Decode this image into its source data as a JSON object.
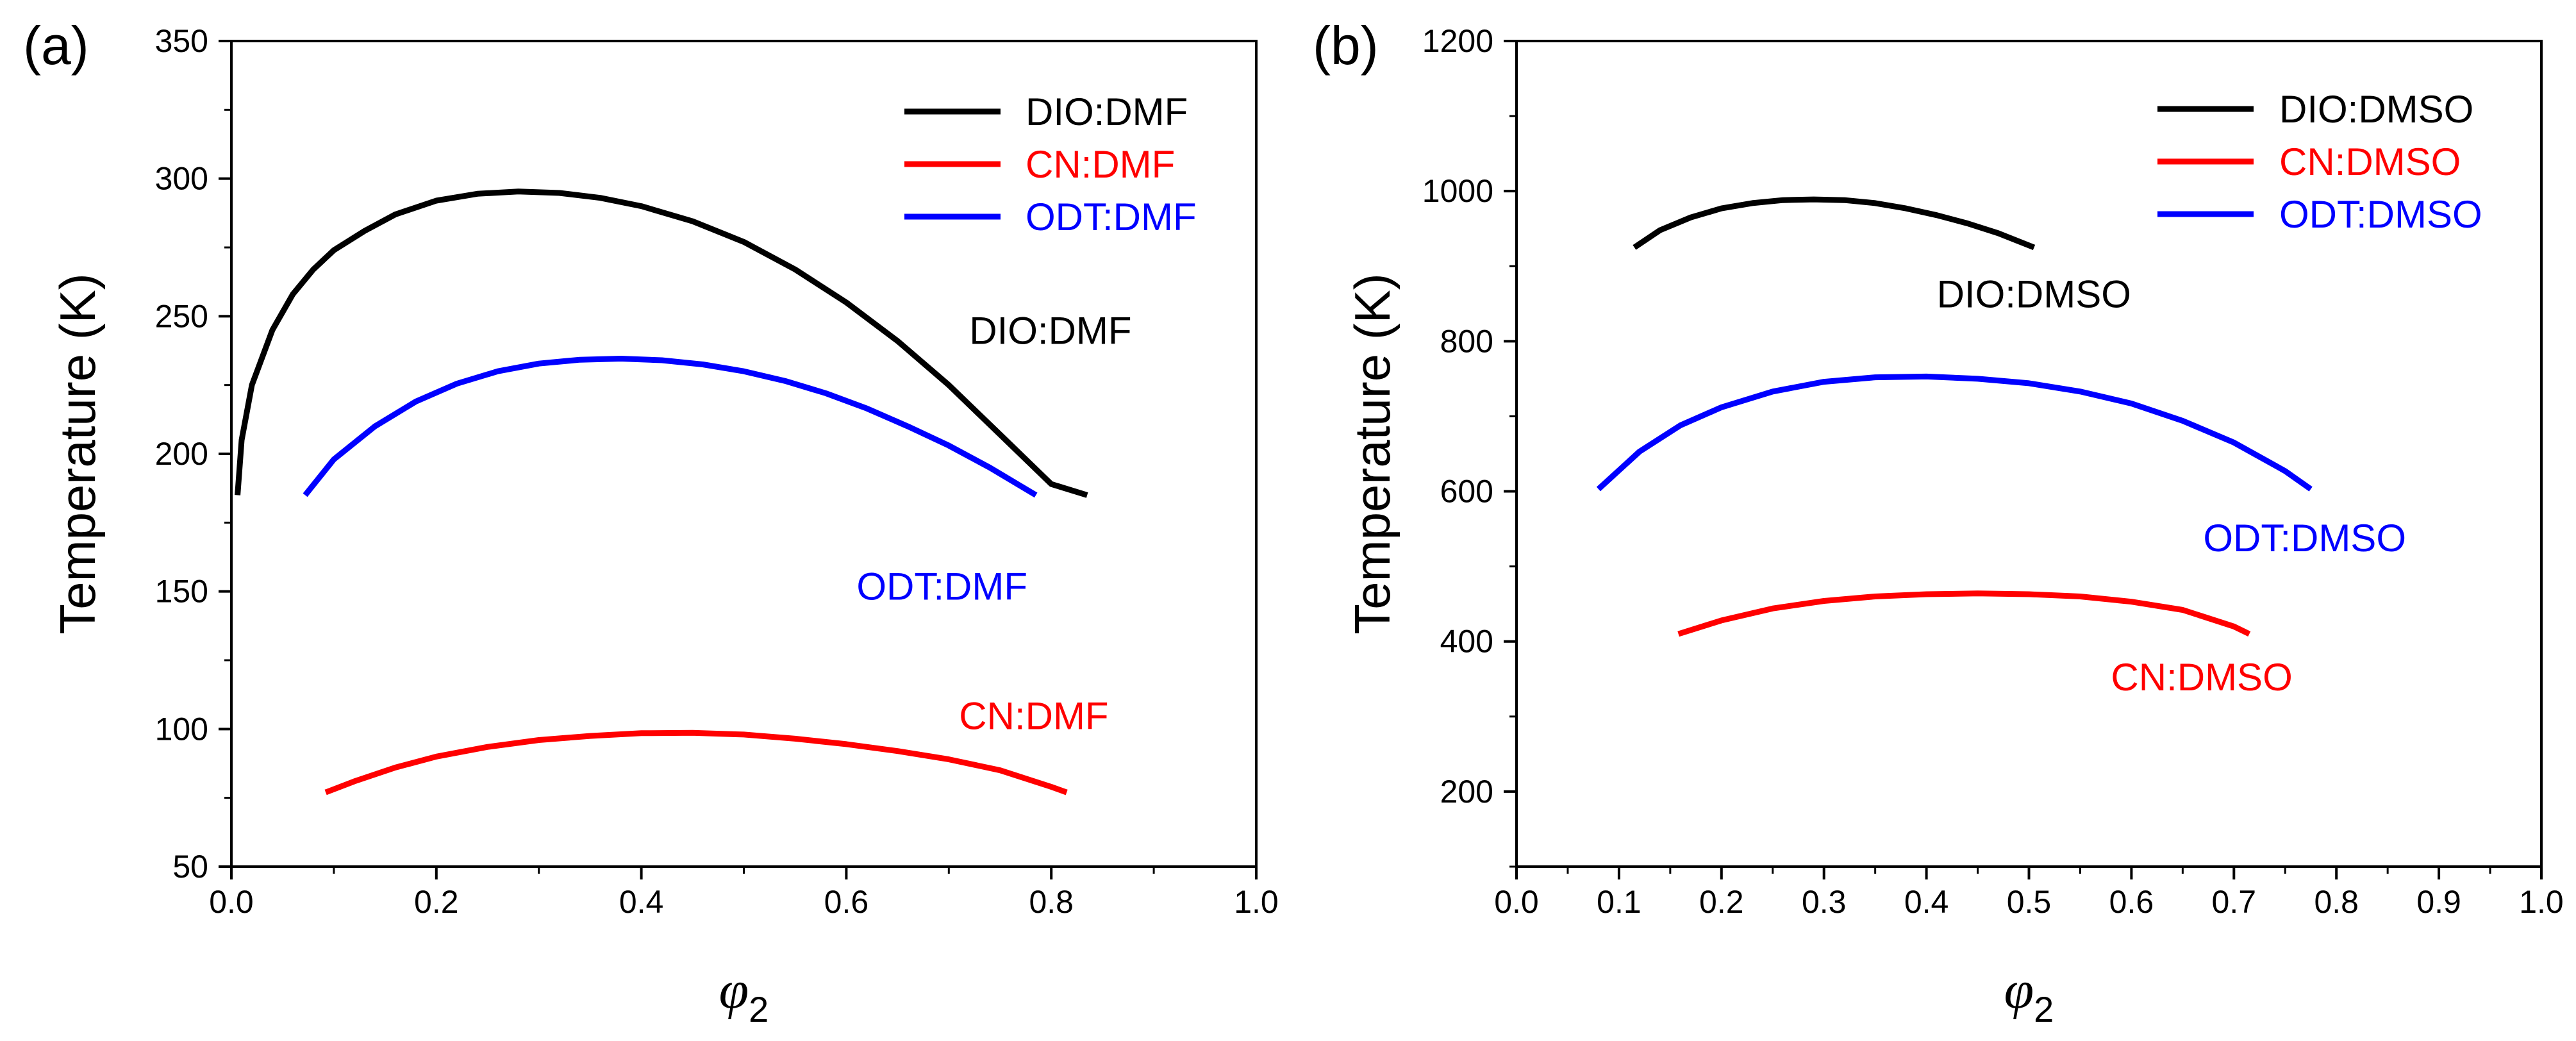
{
  "chart_data": [
    {
      "type": "line",
      "panel_label": "(a)",
      "xlabel": "φ",
      "xlabel_subscript": "2",
      "ylabel": "Temperature (K)",
      "xlim": [
        0.0,
        1.0
      ],
      "ylim": [
        50,
        350
      ],
      "x_major_ticks": [
        0.0,
        0.2,
        0.4,
        0.6,
        0.8,
        1.0
      ],
      "x_tick_labels": [
        "0.0",
        "0.2",
        "0.4",
        "0.6",
        "0.8",
        "1.0"
      ],
      "x_minor_step": 0.1,
      "y_major_ticks": [
        50,
        100,
        150,
        200,
        250,
        300,
        350
      ],
      "y_tick_labels": [
        "50",
        "100",
        "150",
        "200",
        "250",
        "300",
        "350"
      ],
      "y_minor_step": 25,
      "grid": false,
      "legend_position": "top-right",
      "series": [
        {
          "name": "DIO:DMF",
          "color": "#000000",
          "x": [
            0.006,
            0.01,
            0.02,
            0.04,
            0.06,
            0.08,
            0.1,
            0.13,
            0.16,
            0.2,
            0.24,
            0.28,
            0.32,
            0.36,
            0.4,
            0.45,
            0.5,
            0.55,
            0.6,
            0.65,
            0.7,
            0.75,
            0.8,
            0.835
          ],
          "values": [
            185,
            205,
            225,
            245,
            258,
            267,
            274,
            281,
            287,
            292,
            294.5,
            295.3,
            294.8,
            293,
            290,
            284.5,
            277,
            267,
            255,
            241,
            225,
            207,
            189,
            185
          ]
        },
        {
          "name": "CN:DMF",
          "color": "#ff0000",
          "x": [
            0.092,
            0.12,
            0.16,
            0.2,
            0.25,
            0.3,
            0.35,
            0.4,
            0.45,
            0.5,
            0.55,
            0.6,
            0.65,
            0.7,
            0.75,
            0.8,
            0.815
          ],
          "values": [
            77,
            81,
            86,
            90,
            93.5,
            96,
            97.5,
            98.5,
            98.6,
            98,
            96.5,
            94.5,
            92,
            89,
            85,
            79,
            77
          ]
        },
        {
          "name": "ODT:DMF",
          "color": "#0000ff",
          "x": [
            0.072,
            0.1,
            0.14,
            0.18,
            0.22,
            0.26,
            0.3,
            0.34,
            0.38,
            0.42,
            0.46,
            0.5,
            0.54,
            0.58,
            0.62,
            0.66,
            0.7,
            0.74,
            0.785
          ],
          "values": [
            185,
            198,
            210,
            219,
            225.5,
            230,
            232.8,
            234.2,
            234.6,
            234,
            232.5,
            230,
            226.5,
            222,
            216.5,
            210,
            203,
            195,
            185
          ]
        }
      ],
      "annotations": [
        {
          "text": "DIO:DMF",
          "color": "#000000",
          "x": 0.72,
          "y": 240
        },
        {
          "text": "ODT:DMF",
          "color": "#0000ff",
          "x": 0.61,
          "y": 147
        },
        {
          "text": "CN:DMF",
          "color": "#ff0000",
          "x": 0.71,
          "y": 100
        }
      ]
    },
    {
      "type": "line",
      "panel_label": "(b)",
      "xlabel": "φ",
      "xlabel_subscript": "2",
      "ylabel": "Temperature (K)",
      "xlim": [
        0.0,
        1.0
      ],
      "ylim": [
        100,
        1200
      ],
      "x_major_ticks": [
        0.0,
        0.1,
        0.2,
        0.3,
        0.4,
        0.5,
        0.6,
        0.7,
        0.8,
        0.9,
        1.0
      ],
      "x_tick_labels": [
        "0.0",
        "0.1",
        "0.2",
        "0.3",
        "0.4",
        "0.5",
        "0.6",
        "0.7",
        "0.8",
        "0.9",
        "1.0"
      ],
      "x_minor_step": 0.05,
      "y_major_ticks": [
        200,
        400,
        600,
        800,
        1000,
        1200
      ],
      "y_tick_labels": [
        "200",
        "400",
        "600",
        "800",
        "1000",
        "1200"
      ],
      "y_minor_step": 100,
      "grid": false,
      "legend_position": "top-right",
      "series": [
        {
          "name": "DIO:DMSO",
          "color": "#000000",
          "x": [
            0.115,
            0.14,
            0.17,
            0.2,
            0.23,
            0.26,
            0.29,
            0.32,
            0.35,
            0.38,
            0.41,
            0.44,
            0.47,
            0.505
          ],
          "values": [
            925,
            948,
            965,
            977,
            984,
            988,
            989,
            988,
            984,
            977,
            968,
            957,
            944,
            925
          ]
        },
        {
          "name": "CN:DMSO",
          "color": "#ff0000",
          "x": [
            0.158,
            0.2,
            0.25,
            0.3,
            0.35,
            0.4,
            0.45,
            0.5,
            0.55,
            0.6,
            0.65,
            0.7,
            0.715
          ],
          "values": [
            410,
            428,
            444,
            454,
            460,
            463,
            464,
            463,
            460,
            453,
            442,
            420,
            410
          ]
        },
        {
          "name": "ODT:DMSO",
          "color": "#0000ff",
          "x": [
            0.08,
            0.12,
            0.16,
            0.2,
            0.25,
            0.3,
            0.35,
            0.4,
            0.45,
            0.5,
            0.55,
            0.6,
            0.65,
            0.7,
            0.75,
            0.775
          ],
          "values": [
            603,
            653,
            688,
            712,
            733,
            746,
            752,
            753,
            750,
            744,
            733,
            717,
            694,
            665,
            627,
            603
          ]
        }
      ],
      "annotations": [
        {
          "text": "DIO:DMSO",
          "color": "#000000",
          "x": 0.41,
          "y": 845
        },
        {
          "text": "ODT:DMSO",
          "color": "#0000ff",
          "x": 0.67,
          "y": 520
        },
        {
          "text": "CN:DMSO",
          "color": "#ff0000",
          "x": 0.58,
          "y": 335
        }
      ]
    }
  ]
}
